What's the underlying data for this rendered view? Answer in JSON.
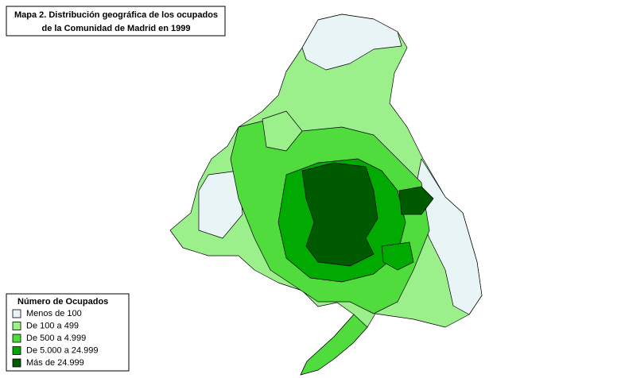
{
  "title": {
    "line1": "Mapa 2. Distribución geográfica de los ocupados",
    "line2": "de la Comunidad de Madrid en 1999"
  },
  "legend": {
    "title": "Número de Ocupados",
    "items": [
      {
        "label": "Menos de 100",
        "color": "#e8f4f6"
      },
      {
        "label": "De 100 a 499",
        "color": "#9cf08c"
      },
      {
        "label": "De 500 a 4.999",
        "color": "#50dc3c"
      },
      {
        "label": "De 5.000 a 24.999",
        "color": "#00aa00"
      },
      {
        "label": "Más de 24.999",
        "color": "#005a00"
      }
    ]
  }
}
